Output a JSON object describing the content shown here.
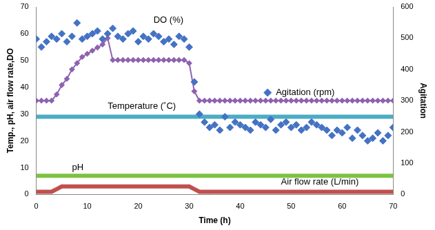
{
  "chart_data": {
    "type": "scatter",
    "x_label": "Time (h)",
    "y_label": "Temp., pH, air flow rate,DO",
    "y2_label": "Agitation",
    "xlim": [
      0,
      70
    ],
    "xticks": [
      0,
      10,
      20,
      30,
      40,
      50,
      60,
      70
    ],
    "ylim": [
      0,
      70
    ],
    "yticks": [
      0,
      10,
      20,
      30,
      40,
      50,
      60,
      70
    ],
    "y2lim": [
      0,
      600
    ],
    "y2ticks": [
      0,
      100,
      200,
      300,
      400,
      500,
      600
    ],
    "grid": false,
    "x": [
      0,
      1,
      2,
      3,
      4,
      5,
      6,
      7,
      8,
      9,
      10,
      11,
      12,
      13,
      14,
      15,
      16,
      17,
      18,
      19,
      20,
      21,
      22,
      23,
      24,
      25,
      26,
      27,
      28,
      29,
      30,
      31,
      32,
      33,
      34,
      35,
      36,
      37,
      38,
      39,
      40,
      41,
      42,
      43,
      44,
      45,
      46,
      47,
      48,
      49,
      50,
      51,
      52,
      53,
      54,
      55,
      56,
      57,
      58,
      59,
      60,
      61,
      62,
      63,
      64,
      65,
      66,
      67,
      68,
      69,
      70
    ],
    "series": [
      {
        "name": "DO (%)",
        "type": "scatter",
        "marker": "diamond",
        "color": "#4472c4",
        "values": [
          58,
          55,
          57,
          59,
          58,
          60,
          57,
          59,
          64,
          58,
          59,
          60,
          61,
          58,
          60,
          62,
          59,
          58,
          60,
          61,
          57,
          59,
          58,
          60,
          59,
          57,
          58,
          56,
          59,
          58,
          55,
          42,
          30,
          27,
          25,
          26,
          24,
          29,
          25,
          27,
          26,
          25,
          24,
          27,
          26,
          25,
          28,
          24,
          26,
          27,
          25,
          26,
          24,
          25,
          27,
          26,
          25,
          24,
          22,
          24,
          23,
          25,
          21,
          24,
          22,
          20,
          21,
          23,
          20,
          22,
          25
        ]
      },
      {
        "name": "Agitation (rpm)",
        "type": "line",
        "marker": "diamond",
        "color": "#8e62b0",
        "axis": "y2",
        "values": [
          300,
          300,
          300,
          300,
          320,
          350,
          370,
          400,
          420,
          440,
          450,
          460,
          470,
          480,
          500,
          430,
          430,
          430,
          430,
          430,
          430,
          430,
          430,
          430,
          430,
          430,
          430,
          430,
          430,
          430,
          420,
          330,
          300,
          300,
          300,
          300,
          300,
          300,
          300,
          300,
          300,
          300,
          300,
          300,
          300,
          300,
          300,
          300,
          300,
          300,
          300,
          300,
          300,
          300,
          300,
          300,
          300,
          300,
          300,
          300,
          300,
          300,
          300,
          300,
          300,
          300,
          300,
          300,
          300,
          300,
          300
        ]
      },
      {
        "name": "Temperature (˚C)",
        "type": "line",
        "marker": "none",
        "color": "#4bacc6",
        "values": [
          29,
          29,
          29,
          29,
          29,
          29,
          29,
          29,
          29,
          29,
          29,
          29,
          29,
          29,
          29,
          29,
          29,
          29,
          29,
          29,
          29,
          29,
          29,
          29,
          29,
          29,
          29,
          29,
          29,
          29,
          29,
          29,
          29,
          29,
          29,
          29,
          29,
          29,
          29,
          29,
          29,
          29,
          29,
          29,
          29,
          29,
          29,
          29,
          29,
          29,
          29,
          29,
          29,
          29,
          29,
          29,
          29,
          29,
          29,
          29,
          29,
          29,
          29,
          29,
          29,
          29,
          29,
          29,
          29,
          29,
          29
        ]
      },
      {
        "name": "pH",
        "type": "line",
        "marker": "none",
        "color": "#7dc242",
        "values": [
          7,
          7,
          7,
          7,
          7,
          7,
          7,
          7,
          7,
          7,
          7,
          7,
          7,
          7,
          7,
          7,
          7,
          7,
          7,
          7,
          7,
          7,
          7,
          7,
          7,
          7,
          7,
          7,
          7,
          7,
          7,
          7,
          7,
          7,
          7,
          7,
          7,
          7,
          7,
          7,
          7,
          7,
          7,
          7,
          7,
          7,
          7,
          7,
          7,
          7,
          7,
          7,
          7,
          7,
          7,
          7,
          7,
          7,
          7,
          7,
          7,
          7,
          7,
          7,
          7,
          7,
          7,
          7,
          7,
          7,
          7
        ]
      },
      {
        "name": "Air flow rate (L/min)",
        "type": "line",
        "marker": "none",
        "color": "#c0504d",
        "values": [
          1,
          1,
          1,
          1,
          2,
          3,
          3,
          3,
          3,
          3,
          3,
          3,
          3,
          3,
          3,
          3,
          3,
          3,
          3,
          3,
          3,
          3,
          3,
          3,
          3,
          3,
          3,
          3,
          3,
          3,
          3,
          2,
          1,
          1,
          1,
          1,
          1,
          1,
          1,
          1,
          1,
          1,
          1,
          1,
          1,
          1,
          1,
          1,
          1,
          1,
          1,
          1,
          1,
          1,
          1,
          1,
          1,
          1,
          1,
          1,
          1,
          1,
          1,
          1,
          1,
          1,
          1,
          1,
          1,
          1,
          1
        ]
      }
    ]
  }
}
